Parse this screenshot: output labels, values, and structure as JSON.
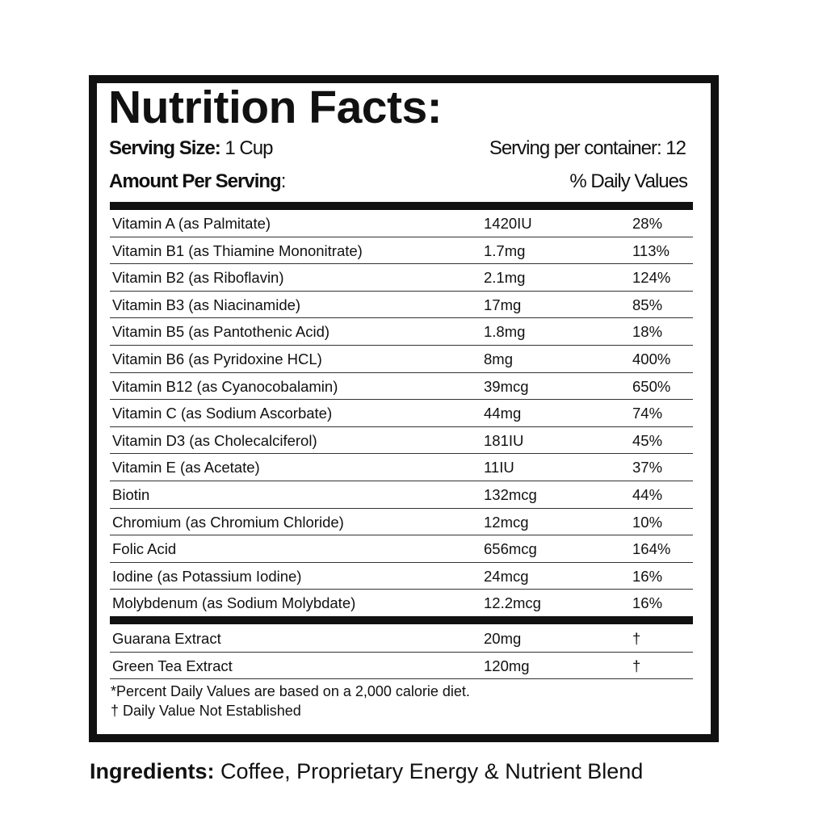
{
  "title": "Nutrition Facts:",
  "serving_size_label": "Serving Size:",
  "serving_size_value": "1 Cup",
  "servings_per_container": "Serving per container: 12",
  "amount_per_serving": "Amount Per Serving",
  "amount_colon": ":",
  "daily_values_header": "% Daily Values",
  "nutrients": [
    [
      "Vitamin A (as Palmitate)",
      "1420IU",
      "28%"
    ],
    [
      "Vitamin B1 (as Thiamine Mononitrate)",
      "1.7mg",
      "113%"
    ],
    [
      "Vitamin B2 (as Riboflavin)",
      "2.1mg",
      "124%"
    ],
    [
      "Vitamin B3 (as Niacinamide)",
      "17mg",
      "85%"
    ],
    [
      "Vitamin B5 (as Pantothenic Acid)",
      "1.8mg",
      "18%"
    ],
    [
      "Vitamin B6 (as Pyridoxine HCL)",
      "8mg",
      "400%"
    ],
    [
      "Vitamin B12 (as Cyanocobalamin)",
      "39mcg",
      "650%"
    ],
    [
      "Vitamin C (as Sodium Ascorbate)",
      "44mg",
      "74%"
    ],
    [
      "Vitamin D3 (as Cholecalciferol)",
      "181IU",
      "45%"
    ],
    [
      "Vitamin E (as Acetate)",
      "11IU",
      "37%"
    ],
    [
      "Biotin",
      "132mcg",
      "44%"
    ],
    [
      "Chromium (as Chromium Chloride)",
      "12mcg",
      "10%"
    ],
    [
      "Folic Acid",
      "656mcg",
      "164%"
    ],
    [
      "Iodine (as Potassium Iodine)",
      "24mcg",
      "16%"
    ],
    [
      "Molybdenum (as Sodium Molybdate)",
      "12.2mcg",
      "16%"
    ]
  ],
  "extracts": [
    [
      "Guarana Extract",
      "20mg",
      "†"
    ],
    [
      "Green Tea Extract",
      "120mg",
      "†"
    ]
  ],
  "footnote_1": "*Percent Daily Values are based on a 2,000 calorie diet.",
  "footnote_2": "† Daily Value Not Established",
  "ingredients_label": "Ingredients:",
  "ingredients_value": " Coffee, Proprietary Energy & Nutrient Blend"
}
